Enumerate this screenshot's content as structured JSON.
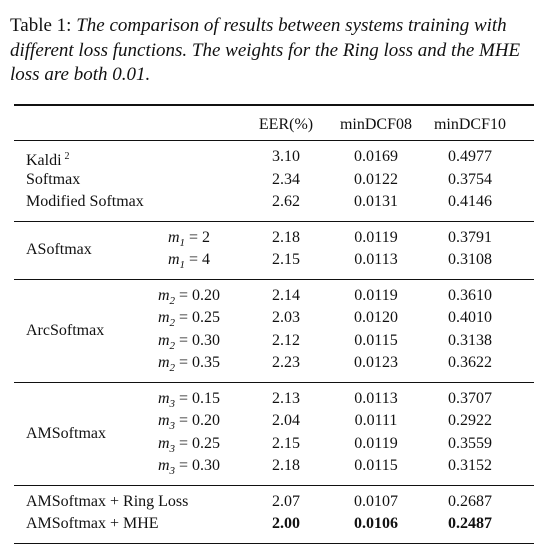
{
  "caption": {
    "label": "Table 1:",
    "text": "The comparison of results between systems training with different loss functions. The weights for the Ring loss and the MHE loss are both 0.01."
  },
  "columns": [
    "EER(%)",
    "minDCF08",
    "minDCF10"
  ],
  "groups": [
    {
      "rows": [
        {
          "method": "Kaldi",
          "note": "2",
          "eer": "3.10",
          "dcf08": "0.0169",
          "dcf10": "0.4977"
        },
        {
          "method": "Softmax",
          "eer": "2.34",
          "dcf08": "0.0122",
          "dcf10": "0.3754"
        },
        {
          "method": "Modified Softmax",
          "eer": "2.62",
          "dcf08": "0.0131",
          "dcf10": "0.4146"
        }
      ]
    },
    {
      "method": "ASoftmax",
      "param_symbol": "m",
      "param_index": "1",
      "rows": [
        {
          "param": "2",
          "eer": "2.18",
          "dcf08": "0.0119",
          "dcf10": "0.3791"
        },
        {
          "param": "4",
          "eer": "2.15",
          "dcf08": "0.0113",
          "dcf10": "0.3108"
        }
      ]
    },
    {
      "method": "ArcSoftmax",
      "param_symbol": "m",
      "param_index": "2",
      "rows": [
        {
          "param": "0.20",
          "eer": "2.14",
          "dcf08": "0.0119",
          "dcf10": "0.3610"
        },
        {
          "param": "0.25",
          "eer": "2.03",
          "dcf08": "0.0120",
          "dcf10": "0.4010"
        },
        {
          "param": "0.30",
          "eer": "2.12",
          "dcf08": "0.0115",
          "dcf10": "0.3138"
        },
        {
          "param": "0.35",
          "eer": "2.23",
          "dcf08": "0.0123",
          "dcf10": "0.3622"
        }
      ]
    },
    {
      "method": "AMSoftmax",
      "param_symbol": "m",
      "param_index": "3",
      "rows": [
        {
          "param": "0.15",
          "eer": "2.13",
          "dcf08": "0.0113",
          "dcf10": "0.3707"
        },
        {
          "param": "0.20",
          "eer": "2.04",
          "dcf08": "0.0111",
          "dcf10": "0.2922"
        },
        {
          "param": "0.25",
          "eer": "2.15",
          "dcf08": "0.0119",
          "dcf10": "0.3559"
        },
        {
          "param": "0.30",
          "eer": "2.18",
          "dcf08": "0.0115",
          "dcf10": "0.3152"
        }
      ]
    },
    {
      "rows": [
        {
          "method": "AMSoftmax + Ring Loss",
          "eer": "2.07",
          "dcf08": "0.0107",
          "dcf10": "0.2687"
        },
        {
          "method": "AMSoftmax + MHE",
          "eer": "2.00",
          "dcf08": "0.0106",
          "dcf10": "0.2487",
          "bold": true
        }
      ]
    }
  ]
}
